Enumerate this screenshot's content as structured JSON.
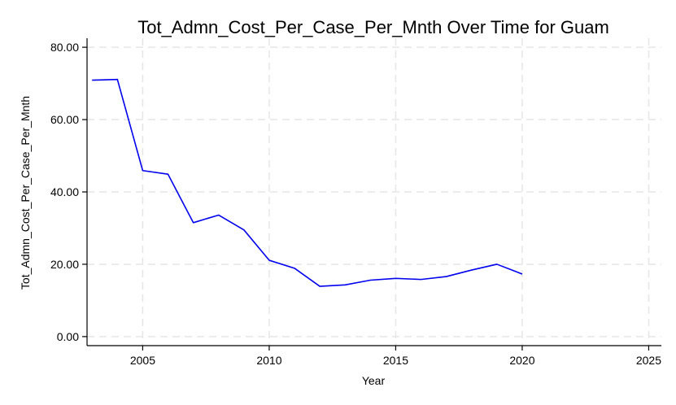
{
  "chart_data": {
    "type": "line",
    "title": "Tot_Admn_Cost_Per_Case_Per_Mnth Over Time for Guam",
    "xlabel": "Year",
    "ylabel": "Tot_Admn_Cost_Per_Case_Per_Mnth",
    "xlim": [
      2002.8,
      2025.5
    ],
    "ylim": [
      -2.5,
      82.5
    ],
    "x_ticks": [
      2005,
      2010,
      2015,
      2020,
      2025
    ],
    "y_ticks": [
      0,
      20,
      40,
      60,
      80
    ],
    "y_tick_labels": [
      "0.00",
      "20.00",
      "40.00",
      "60.00",
      "80.00"
    ],
    "grid": true,
    "legend": "none",
    "colors": {
      "series": "#0000ee",
      "grid": "#e6e6e6"
    },
    "series": [
      {
        "x": [
          2003,
          2004,
          2005,
          2006,
          2007,
          2008,
          2009,
          2010,
          2011,
          2012,
          2013,
          2014,
          2015,
          2016,
          2017,
          2018,
          2019,
          2020
        ],
        "values": [
          70.9,
          71.1,
          45.9,
          44.9,
          31.5,
          33.6,
          29.5,
          21.1,
          18.9,
          13.9,
          14.3,
          15.6,
          16.1,
          15.8,
          16.6,
          18.4,
          20.0,
          17.3
        ]
      }
    ]
  }
}
